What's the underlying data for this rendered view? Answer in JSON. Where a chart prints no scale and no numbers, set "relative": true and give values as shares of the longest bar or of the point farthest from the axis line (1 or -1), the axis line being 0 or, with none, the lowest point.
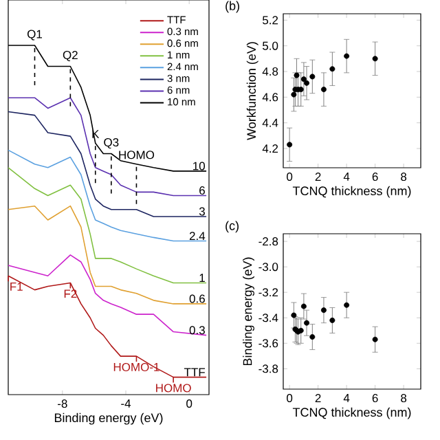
{
  "chart_data": [
    {
      "type": "line",
      "relative": true,
      "xlabel": "Binding energy (eV)",
      "xlim": [
        -11.42,
        1.25
      ],
      "xticks": [
        -8,
        -4,
        0
      ],
      "legend": "top right",
      "x": [
        -11.42,
        -9.75,
        -8.92,
        -7.5,
        -6.83,
        -6.25,
        -5.92,
        -5.42,
        -4.92,
        -4.33,
        -3.33,
        -2.25,
        -1.0,
        1.08
      ],
      "series": [
        {
          "name": "TTF",
          "color": "#b01818",
          "values": [
            0.34,
            0.3,
            0.31,
            0.32,
            0.26,
            0.22,
            0.19,
            0.17,
            0.14,
            0.11,
            0.11,
            0.08,
            0.05,
            0.05
          ]
        },
        {
          "name": "0.3 nm",
          "color": "#cc22cc",
          "values": [
            0.37,
            0.35,
            0.34,
            0.4,
            0.38,
            0.33,
            0.29,
            0.27,
            0.26,
            0.25,
            0.23,
            0.23,
            0.18,
            0.17
          ]
        },
        {
          "name": "0.6 nm",
          "color": "#e0a030",
          "values": [
            0.53,
            0.54,
            0.5,
            0.54,
            0.48,
            0.35,
            0.31,
            0.31,
            0.31,
            0.3,
            0.29,
            0.27,
            0.26,
            0.26
          ]
        },
        {
          "name": "1 nm",
          "color": "#80c040",
          "values": [
            0.65,
            0.59,
            0.57,
            0.6,
            0.56,
            0.46,
            0.39,
            0.39,
            0.39,
            0.38,
            0.36,
            0.34,
            0.32,
            0.32
          ]
        },
        {
          "name": "2.4 nm",
          "color": "#5aa0e0",
          "values": [
            0.7,
            0.66,
            0.65,
            0.68,
            0.63,
            0.54,
            0.5,
            0.49,
            0.48,
            0.47,
            0.46,
            0.45,
            0.44,
            0.44
          ]
        },
        {
          "name": "3 nm",
          "color": "#1c2460",
          "values": [
            0.81,
            0.8,
            0.75,
            0.74,
            0.69,
            0.6,
            0.56,
            0.54,
            0.53,
            0.53,
            0.53,
            0.51,
            0.51,
            0.51
          ]
        },
        {
          "name": "6 nm",
          "color": "#5a30b0",
          "values": [
            0.85,
            0.85,
            0.82,
            0.85,
            0.8,
            0.69,
            0.65,
            0.64,
            0.63,
            0.6,
            0.58,
            0.58,
            0.57,
            0.57
          ]
        },
        {
          "name": "10 nm",
          "color": "#000000",
          "values": [
            1.0,
            1.0,
            0.94,
            0.94,
            0.88,
            0.8,
            0.72,
            0.69,
            0.69,
            0.67,
            0.66,
            0.65,
            0.64,
            0.64
          ]
        }
      ],
      "annotations": [
        {
          "text": "Q1",
          "x": -9.75,
          "y": 1.0
        },
        {
          "text": "Q2",
          "x": -7.5,
          "y": 0.94
        },
        {
          "text": "K",
          "x": -5.92,
          "y": 0.72
        },
        {
          "text": "Q3",
          "x": -4.92,
          "y": 0.69
        },
        {
          "text": "HOMO",
          "x": -3.33,
          "y": 0.66
        },
        {
          "text": "10",
          "x": 1.08,
          "y": 0.64
        },
        {
          "text": "6",
          "x": 1.08,
          "y": 0.57
        },
        {
          "text": "3",
          "x": 1.08,
          "y": 0.51
        },
        {
          "text": "2.4",
          "x": 1.08,
          "y": 0.44
        },
        {
          "text": "1",
          "x": 1.08,
          "y": 0.32
        },
        {
          "text": "0.6",
          "x": 1.08,
          "y": 0.26
        },
        {
          "text": "0.3",
          "x": 1.08,
          "y": 0.17
        },
        {
          "text": "TTF",
          "x": 1.08,
          "y": 0.05
        },
        {
          "text": "F1",
          "x": -11.42,
          "y": 0.34
        },
        {
          "text": "F2",
          "x": -7.5,
          "y": 0.32
        },
        {
          "text": "HOMO-1",
          "x": -3.33,
          "y": 0.11
        },
        {
          "text": "HOMO",
          "x": -1.0,
          "y": 0.05
        }
      ]
    },
    {
      "type": "scatter",
      "title": "(b)",
      "xlabel": "TCNQ thickness (nm)",
      "ylabel": "Workfunction (eV)",
      "marker": "circle",
      "xlim": [
        -0.44,
        9.2
      ],
      "ylim": [
        4.05,
        5.25
      ],
      "xticks": [
        0,
        2,
        4,
        6,
        8
      ],
      "yticks": [
        4.2,
        4.4,
        4.6,
        4.8,
        {
          "value": 5.0,
          "label": "5.0"
        },
        5.2
      ],
      "series": [
        {
          "color": "#000000",
          "x": [
            0,
            0.3,
            0.4,
            0.5,
            0.6,
            0.8,
            1.0,
            1.2,
            1.6,
            2.4,
            3,
            4,
            6
          ],
          "values": [
            4.23,
            4.62,
            4.66,
            4.77,
            4.66,
            4.66,
            4.74,
            4.71,
            4.76,
            4.66,
            4.82,
            4.92,
            4.9
          ],
          "errors": [
            0.13,
            0.13,
            0.13,
            0.13,
            0.13,
            0.13,
            0.13,
            0.13,
            0.13,
            0.13,
            0.13,
            0.13,
            0.13
          ]
        }
      ]
    },
    {
      "type": "scatter",
      "title": "(c)",
      "xlabel": "TCNQ thickness (nm)",
      "ylabel": "Binding energy (eV)",
      "marker": "circle",
      "xlim": [
        -0.44,
        9.2
      ],
      "ylim": [
        -3.96,
        -2.74
      ],
      "xticks": [
        0,
        2,
        4,
        6,
        8
      ],
      "yticks": [
        -3.8,
        -3.6,
        -3.4,
        -3.2,
        {
          "value": -3.0,
          "label": "-3.0"
        },
        -2.8
      ],
      "series": [
        {
          "color": "#000000",
          "x": [
            0.3,
            0.4,
            0.5,
            0.6,
            0.8,
            1.0,
            1.2,
            1.6,
            2.4,
            3,
            4,
            6
          ],
          "values": [
            -3.38,
            -3.49,
            -3.5,
            -3.51,
            -3.5,
            -3.31,
            -3.44,
            -3.55,
            -3.34,
            -3.42,
            -3.3,
            -3.57
          ],
          "errors": [
            0.1,
            0.1,
            0.1,
            0.1,
            0.1,
            0.1,
            0.1,
            0.1,
            0.1,
            0.1,
            0.1,
            0.1
          ]
        }
      ]
    }
  ]
}
